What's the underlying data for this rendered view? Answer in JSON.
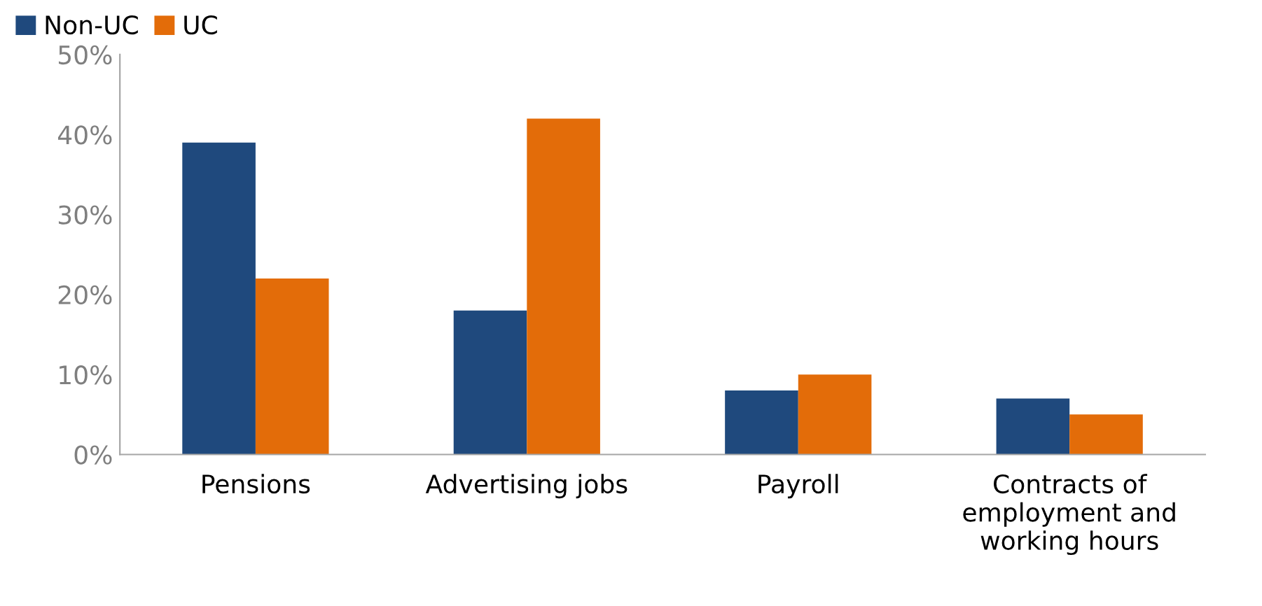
{
  "chart_data": {
    "type": "bar",
    "categories": [
      "Pensions",
      "Advertising jobs",
      "Payroll",
      "Contracts of\nemployment and\nworking hours"
    ],
    "series": [
      {
        "name": "Non-UC",
        "color": "#1f497d",
        "values": [
          39,
          18,
          8,
          7
        ]
      },
      {
        "name": "UC",
        "color": "#e36c09",
        "values": [
          22,
          42,
          10,
          5
        ]
      }
    ],
    "ylim": [
      0,
      50
    ],
    "yticks": [
      {
        "value": 0,
        "label": "0%"
      },
      {
        "value": 10,
        "label": "10%"
      },
      {
        "value": 20,
        "label": "20%"
      },
      {
        "value": 30,
        "label": "30%"
      },
      {
        "value": 40,
        "label": "40%"
      },
      {
        "value": 50,
        "label": "50%"
      }
    ],
    "grid": false,
    "legend": "top left"
  }
}
